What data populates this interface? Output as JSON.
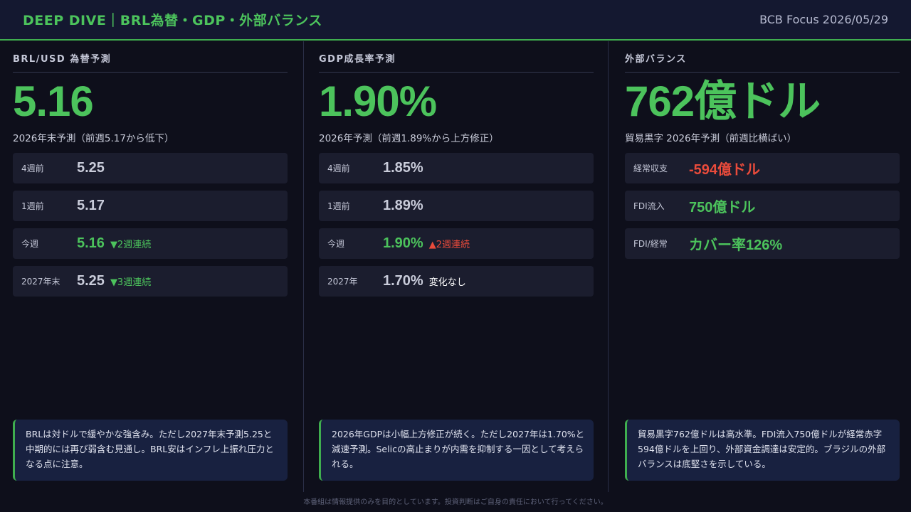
{
  "header": {
    "title": "DEEP DIVE｜BRL為替・GDP・外部バランス",
    "meta": "BCB Focus 2026/05/29"
  },
  "columns": [
    {
      "title": "BRL/USD 為替予測",
      "big": "5.16",
      "sub": "2026年末予測（前週5.17から低下）",
      "rows": [
        {
          "label": "4週前",
          "value": "5.25",
          "note": ""
        },
        {
          "label": "1週前",
          "value": "5.17",
          "note": ""
        },
        {
          "label": "今週",
          "value": "5.16",
          "note": "▼2週連続"
        },
        {
          "label": "2027年末",
          "value": "5.25",
          "note": "▼3週連続"
        }
      ],
      "comment": "BRLは対ドルで緩やかな強含み。ただし2027年末予測5.25と中期的には再び弱含む見通し。BRL安はインフレ上振れ圧力となる点に注意。"
    },
    {
      "title": "GDP成長率予測",
      "big": "1.90%",
      "sub": "2026年予測（前週1.89%から上方修正）",
      "rows": [
        {
          "label": "4週前",
          "value": "1.85%",
          "note": ""
        },
        {
          "label": "1週前",
          "value": "1.89%",
          "note": ""
        },
        {
          "label": "今週",
          "value": "1.90%",
          "note": "▲2週連続"
        },
        {
          "label": "2027年",
          "value": "1.70%",
          "note": "変化なし"
        }
      ],
      "comment": "2026年GDPは小幅上方修正が続く。ただし2027年は1.70%と減速予測。Selicの高止まりが内需を抑制する一因として考えられる。"
    },
    {
      "title": "外部バランス",
      "big": "762億ドル",
      "sub": "貿易黒字 2026年予測（前週比横ばい）",
      "rows": [
        {
          "label": "経常収支",
          "value": "-594億ドル",
          "note": ""
        },
        {
          "label": "FDI流入",
          "value": "750億ドル",
          "note": ""
        },
        {
          "label": "FDI/経常",
          "value": "カバー率126%",
          "note": ""
        }
      ],
      "comment": "貿易黒字762億ドルは高水準。FDI流入750億ドルが経常赤字594億ドルを上回り、外部資金調達は安定的。ブラジルの外部バランスは底堅さを示している。"
    }
  ],
  "footer": "本番組は情報提供のみを目的としています。投資判断はご自身の責任において行ってください。",
  "colors": {
    "accent_green": "#4cc35c",
    "negative_red": "#ea4b3b",
    "background": "#0e0f1b"
  }
}
